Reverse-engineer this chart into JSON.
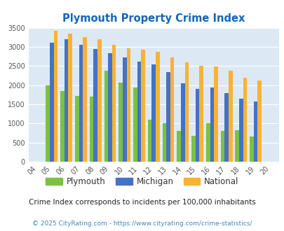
{
  "title": "Plymouth Property Crime Index",
  "years": [
    2004,
    2005,
    2006,
    2007,
    2008,
    2009,
    2010,
    2011,
    2012,
    2013,
    2014,
    2015,
    2016,
    2017,
    2018,
    2019,
    2020
  ],
  "year_labels": [
    "04",
    "05",
    "06",
    "07",
    "08",
    "09",
    "10",
    "11",
    "12",
    "13",
    "14",
    "15",
    "16",
    "17",
    "18",
    "19",
    "20"
  ],
  "plymouth": [
    0,
    2000,
    1850,
    1720,
    1700,
    2380,
    2070,
    1930,
    1100,
    1000,
    800,
    670,
    1000,
    800,
    820,
    650,
    0
  ],
  "michigan": [
    0,
    3100,
    3200,
    3060,
    2940,
    2830,
    2730,
    2620,
    2540,
    2340,
    2050,
    1900,
    1930,
    1790,
    1640,
    1580,
    0
  ],
  "national": [
    0,
    3420,
    3340,
    3250,
    3200,
    3050,
    2960,
    2920,
    2870,
    2730,
    2590,
    2500,
    2480,
    2380,
    2200,
    2120,
    0
  ],
  "plymouth_color": "#7bc143",
  "michigan_color": "#4472c4",
  "national_color": "#f9b233",
  "bg_color": "#dce9f5",
  "ylim": [
    0,
    3500
  ],
  "yticks": [
    0,
    500,
    1000,
    1500,
    2000,
    2500,
    3000,
    3500
  ],
  "subtitle": "Crime Index corresponds to incidents per 100,000 inhabitants",
  "footer": "© 2025 CityRating.com - https://www.cityrating.com/crime-statistics/",
  "title_color": "#1166bb",
  "subtitle_color": "#222222",
  "footer_color": "#4488bb",
  "legend_labels": [
    "Plymouth",
    "Michigan",
    "National"
  ]
}
